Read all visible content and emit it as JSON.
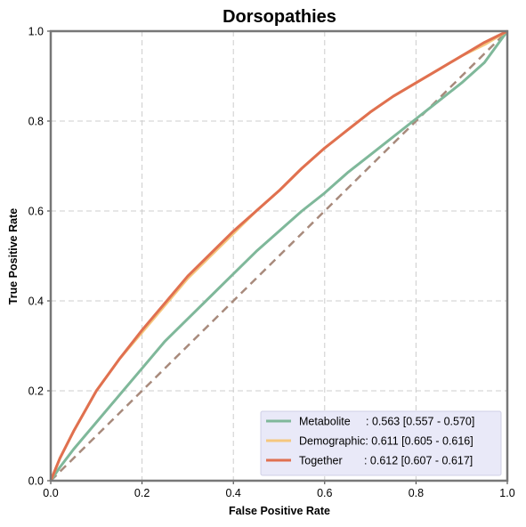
{
  "chart_data": {
    "type": "line",
    "title": "Dorsopathies",
    "xlabel": "False Positive Rate",
    "ylabel": "True Positive Rate",
    "xlim": [
      0,
      1
    ],
    "ylim": [
      0,
      1
    ],
    "xticks": [
      "0.0",
      "0.2",
      "0.4",
      "0.6",
      "0.8",
      "1.0"
    ],
    "yticks": [
      "0.0",
      "0.2",
      "0.4",
      "0.6",
      "0.8",
      "1.0"
    ],
    "grid": true,
    "legend_position": "bottom-right",
    "series": [
      {
        "name": "Metabolite",
        "legend_label": "Metabolite     : 0.563 [0.557 - 0.570]",
        "color": "#7fb89a",
        "x": [
          0,
          0.02,
          0.05,
          0.1,
          0.15,
          0.2,
          0.25,
          0.3,
          0.35,
          0.4,
          0.45,
          0.5,
          0.55,
          0.6,
          0.65,
          0.7,
          0.75,
          0.8,
          0.85,
          0.9,
          0.95,
          1.0
        ],
        "y": [
          0,
          0.03,
          0.07,
          0.13,
          0.19,
          0.25,
          0.31,
          0.36,
          0.41,
          0.46,
          0.51,
          0.555,
          0.6,
          0.64,
          0.685,
          0.725,
          0.765,
          0.805,
          0.845,
          0.885,
          0.93,
          1.0
        ]
      },
      {
        "name": "Demographic",
        "legend_label": "Demographic: 0.611 [0.605 - 0.616]",
        "color": "#f5c77e",
        "x": [
          0,
          0.02,
          0.05,
          0.1,
          0.15,
          0.2,
          0.25,
          0.3,
          0.35,
          0.4,
          0.45,
          0.5,
          0.55,
          0.6,
          0.65,
          0.7,
          0.75,
          0.8,
          0.85,
          0.9,
          0.95,
          1.0
        ],
        "y": [
          0,
          0.05,
          0.11,
          0.2,
          0.27,
          0.33,
          0.39,
          0.45,
          0.5,
          0.55,
          0.6,
          0.645,
          0.695,
          0.74,
          0.78,
          0.82,
          0.855,
          0.885,
          0.915,
          0.945,
          0.97,
          1.0
        ]
      },
      {
        "name": "Together",
        "legend_label": "Together       : 0.612 [0.607 - 0.617]",
        "color": "#e07050",
        "x": [
          0,
          0.02,
          0.05,
          0.1,
          0.15,
          0.2,
          0.25,
          0.3,
          0.35,
          0.4,
          0.45,
          0.5,
          0.55,
          0.6,
          0.65,
          0.7,
          0.75,
          0.8,
          0.85,
          0.9,
          0.95,
          1.0
        ],
        "y": [
          0,
          0.05,
          0.11,
          0.2,
          0.27,
          0.335,
          0.395,
          0.455,
          0.505,
          0.555,
          0.6,
          0.645,
          0.695,
          0.74,
          0.78,
          0.82,
          0.855,
          0.885,
          0.915,
          0.945,
          0.975,
          1.0
        ]
      },
      {
        "name": "",
        "color": "#a88a7c",
        "dashed": true,
        "x": [
          0,
          1
        ],
        "y": [
          0,
          1
        ]
      }
    ]
  }
}
